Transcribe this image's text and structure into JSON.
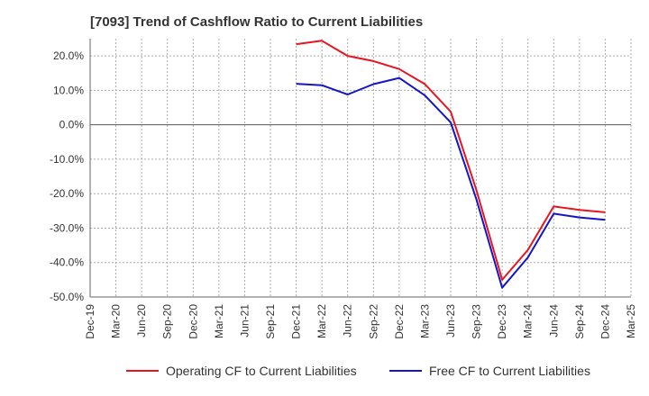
{
  "title": "[7093]  Trend of Cashflow Ratio to Current Liabilities",
  "colors": {
    "operating": "#e8141e",
    "free": "#1414c8",
    "grid": "#aaaaaa",
    "zero_line": "#555555",
    "axis": "#666666"
  },
  "chart_data": {
    "type": "line",
    "title": "[7093]  Trend of Cashflow Ratio to Current Liabilities",
    "xlabel": "",
    "ylabel": "",
    "ylim": [
      -50,
      25
    ],
    "y_unit": "%",
    "y_ticks": [
      20,
      10,
      0,
      -10,
      -20,
      -30,
      -40,
      -50
    ],
    "y_tick_labels": [
      "20.0%",
      "10.0%",
      "0.0%",
      "-10.0%",
      "-20.0%",
      "-30.0%",
      "-40.0%",
      "-50.0%"
    ],
    "x_tick_labels": [
      "Dec-19",
      "Mar-20",
      "Jun-20",
      "Sep-20",
      "Dec-20",
      "Mar-21",
      "Jun-21",
      "Sep-21",
      "Dec-21",
      "Mar-22",
      "Jun-22",
      "Sep-22",
      "Dec-22",
      "Mar-23",
      "Jun-23",
      "Sep-23",
      "Dec-23",
      "Mar-24",
      "Jun-24",
      "Sep-24",
      "Dec-24",
      "Mar-25"
    ],
    "grid": true,
    "legend_position": "bottom",
    "series": [
      {
        "name": "Operating CF to Current Liabilities",
        "color": "#e8141e",
        "x": [
          "Dec-21",
          "Mar-22",
          "Jun-22",
          "Sep-22",
          "Dec-22",
          "Mar-23",
          "Jun-23",
          "Sep-23",
          "Dec-23",
          "Mar-24",
          "Jun-24",
          "Sep-24",
          "Dec-24"
        ],
        "values": [
          23.4,
          24.4,
          20.0,
          18.5,
          16.2,
          11.8,
          3.8,
          -19.0,
          -45.0,
          -36.3,
          -23.7,
          -24.7,
          -25.4
        ]
      },
      {
        "name": "Free CF to Current Liabilities",
        "color": "#1414c8",
        "x": [
          "Dec-21",
          "Mar-22",
          "Jun-22",
          "Sep-22",
          "Dec-22",
          "Mar-23",
          "Jun-23",
          "Sep-23",
          "Dec-23",
          "Mar-24",
          "Jun-24",
          "Sep-24",
          "Dec-24"
        ],
        "values": [
          11.9,
          11.5,
          8.8,
          11.8,
          13.6,
          8.5,
          0.7,
          -21.7,
          -47.3,
          -38.5,
          -25.8,
          -26.9,
          -27.6
        ]
      }
    ]
  }
}
